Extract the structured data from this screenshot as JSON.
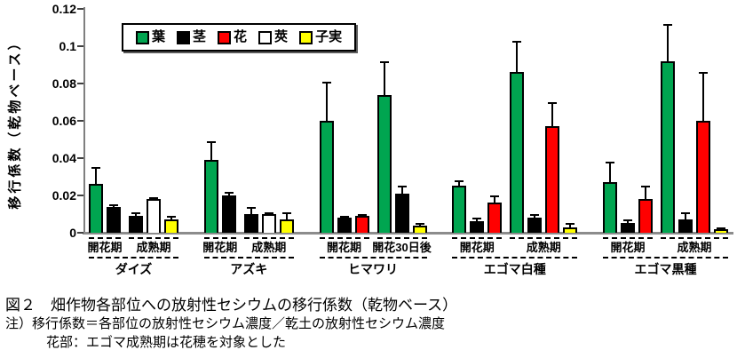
{
  "figure": {
    "caption_title": "図２　畑作物各部位への放射性セシウムの移行係数（乾物ベース）",
    "caption_note1": "注）移行係数＝各部位の放射性セシウム濃度／乾土の放射性セシウム濃度",
    "caption_note2": "花部：エゴマ成熟期は花穂を対象とした"
  },
  "chart_data": {
    "type": "bar",
    "title": "図２　畑作物各部位への放射性セシウムの移行係数（乾物ベース）",
    "xlabel": "",
    "ylabel": "移行係数（乾物ベース）",
    "ylim": [
      0,
      0.12
    ],
    "yticks": [
      0,
      0.02,
      0.04,
      0.06,
      0.08,
      0.1,
      0.12
    ],
    "grid": false,
    "legend_position": "inside-top-left",
    "error_bars": "upper whiskers; err_top = absolute value at top of whisker",
    "legend": [
      {
        "label": "葉",
        "color": "#00A550"
      },
      {
        "label": "茎",
        "color": "#000000"
      },
      {
        "label": "花",
        "color": "#FF0000"
      },
      {
        "label": "莢",
        "color": "#FFFFFF"
      },
      {
        "label": "子実",
        "color": "#FFFF00"
      }
    ],
    "groups": [
      {
        "crop": "ダイズ",
        "subgroups": [
          {
            "period": "開花期",
            "bars": [
              {
                "part": "葉",
                "value": 0.026,
                "err_top": 0.035
              },
              {
                "part": "茎",
                "value": 0.014,
                "err_top": 0.015
              }
            ]
          },
          {
            "period": "成熟期",
            "bars": [
              {
                "part": "茎",
                "value": 0.009,
                "err_top": 0.011
              },
              {
                "part": "莢",
                "value": 0.018,
                "err_top": 0.019
              },
              {
                "part": "子実",
                "value": 0.007,
                "err_top": 0.009
              }
            ]
          }
        ]
      },
      {
        "crop": "アズキ",
        "subgroups": [
          {
            "period": "開花期",
            "bars": [
              {
                "part": "葉",
                "value": 0.039,
                "err_top": 0.049
              },
              {
                "part": "茎",
                "value": 0.02,
                "err_top": 0.022
              }
            ]
          },
          {
            "period": "成熟期",
            "bars": [
              {
                "part": "茎",
                "value": 0.01,
                "err_top": 0.014
              },
              {
                "part": "莢",
                "value": 0.01,
                "err_top": 0.011
              },
              {
                "part": "子実",
                "value": 0.007,
                "err_top": 0.011
              }
            ]
          }
        ]
      },
      {
        "crop": "ヒマワリ",
        "subgroups": [
          {
            "period": "開花期",
            "bars": [
              {
                "part": "葉",
                "value": 0.06,
                "err_top": 0.081
              },
              {
                "part": "茎",
                "value": 0.008,
                "err_top": 0.009
              },
              {
                "part": "花",
                "value": 0.009,
                "err_top": 0.01
              }
            ]
          },
          {
            "period": "開花30日後",
            "bars": [
              {
                "part": "葉",
                "value": 0.074,
                "err_top": 0.092
              },
              {
                "part": "茎",
                "value": 0.021,
                "err_top": 0.025
              },
              {
                "part": "子実",
                "value": 0.004,
                "err_top": 0.005
              }
            ]
          }
        ]
      },
      {
        "crop": "エゴマ白種",
        "subgroups": [
          {
            "period": "開花期",
            "bars": [
              {
                "part": "葉",
                "value": 0.025,
                "err_top": 0.028
              },
              {
                "part": "茎",
                "value": 0.006,
                "err_top": 0.008
              },
              {
                "part": "花",
                "value": 0.016,
                "err_top": 0.02
              }
            ]
          },
          {
            "period": "成熟期",
            "bars": [
              {
                "part": "葉",
                "value": 0.086,
                "err_top": 0.103
              },
              {
                "part": "茎",
                "value": 0.008,
                "err_top": 0.01
              },
              {
                "part": "花",
                "value": 0.057,
                "err_top": 0.07
              },
              {
                "part": "子実",
                "value": 0.003,
                "err_top": 0.005
              }
            ]
          }
        ]
      },
      {
        "crop": "エゴマ黒種",
        "subgroups": [
          {
            "period": "開花期",
            "bars": [
              {
                "part": "葉",
                "value": 0.027,
                "err_top": 0.038
              },
              {
                "part": "茎",
                "value": 0.005,
                "err_top": 0.007
              },
              {
                "part": "花",
                "value": 0.018,
                "err_top": 0.025
              }
            ]
          },
          {
            "period": "成熟期",
            "bars": [
              {
                "part": "葉",
                "value": 0.092,
                "err_top": 0.112
              },
              {
                "part": "茎",
                "value": 0.007,
                "err_top": 0.011
              },
              {
                "part": "花",
                "value": 0.06,
                "err_top": 0.086
              },
              {
                "part": "子実",
                "value": 0.002,
                "err_top": 0.003
              }
            ]
          }
        ]
      }
    ]
  }
}
